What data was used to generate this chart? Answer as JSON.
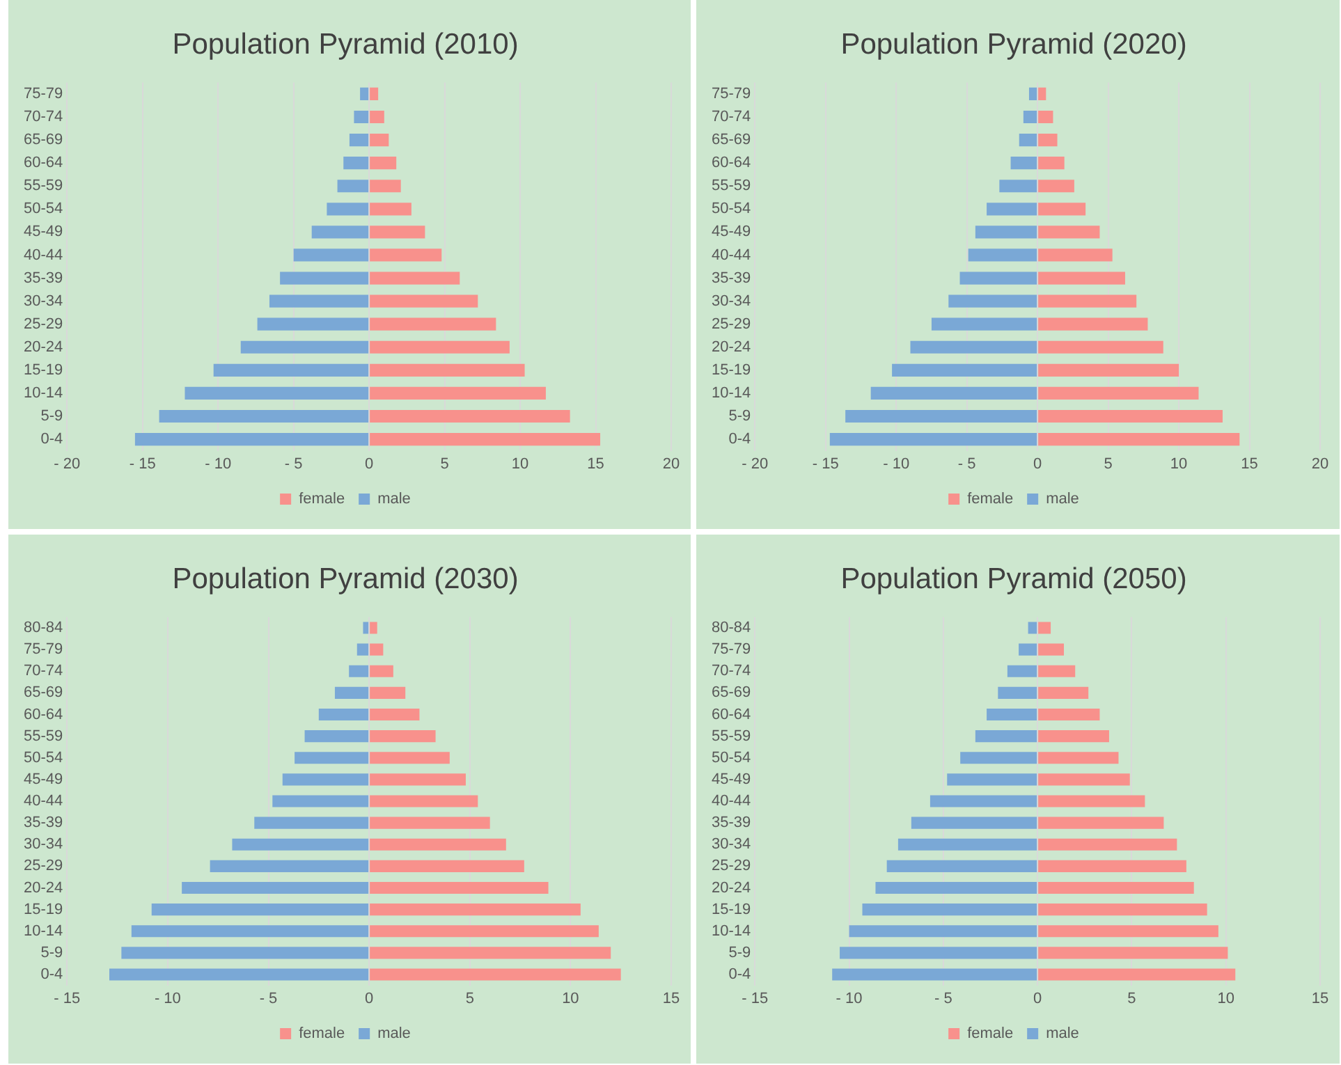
{
  "chart_data": [
    {
      "type": "bar",
      "orientation": "horizontal",
      "stacked": true,
      "title": "Population Pyramid (2010)",
      "categories": [
        "75-79",
        "70-74",
        "65-69",
        "60-64",
        "55-59",
        "50-54",
        "45-49",
        "40-44",
        "35-39",
        "30-34",
        "25-29",
        "20-24",
        "15-19",
        "10-14",
        "5-9",
        "0-4"
      ],
      "series": [
        {
          "name": "female",
          "color": "#f8918c",
          "values": [
            0.6,
            1.0,
            1.3,
            1.8,
            2.1,
            2.8,
            3.7,
            4.8,
            6.0,
            7.2,
            8.4,
            9.3,
            10.3,
            11.7,
            13.3,
            15.3
          ]
        },
        {
          "name": "male",
          "color": "#7aa8d6",
          "values": [
            -0.6,
            -1.0,
            -1.3,
            -1.7,
            -2.1,
            -2.8,
            -3.8,
            -5.0,
            -5.9,
            -6.6,
            -7.4,
            -8.5,
            -10.3,
            -12.2,
            -13.9,
            -15.5
          ]
        }
      ],
      "xlim": [
        -20,
        20
      ],
      "xticks": [
        {
          "value": -20,
          "label": "- 20"
        },
        {
          "value": -15,
          "label": "- 15"
        },
        {
          "value": -10,
          "label": "- 10"
        },
        {
          "value": -5,
          "label": "- 5"
        },
        0,
        5,
        10,
        15,
        20
      ],
      "grid": "x",
      "legend": "bottom"
    },
    {
      "type": "bar",
      "orientation": "horizontal",
      "stacked": true,
      "title": "Population Pyramid (2020)",
      "categories": [
        "75-79",
        "70-74",
        "65-69",
        "60-64",
        "55-59",
        "50-54",
        "45-49",
        "40-44",
        "35-39",
        "30-34",
        "25-29",
        "20-24",
        "15-19",
        "10-14",
        "5-9",
        "0-4"
      ],
      "series": [
        {
          "name": "female",
          "color": "#f8918c",
          "values": [
            0.6,
            1.1,
            1.4,
            1.9,
            2.6,
            3.4,
            4.4,
            5.3,
            6.2,
            7.0,
            7.8,
            8.9,
            10.0,
            11.4,
            13.1,
            14.3
          ]
        },
        {
          "name": "male",
          "color": "#7aa8d6",
          "values": [
            -0.6,
            -1.0,
            -1.3,
            -1.9,
            -2.7,
            -3.6,
            -4.4,
            -4.9,
            -5.5,
            -6.3,
            -7.5,
            -9.0,
            -10.3,
            -11.8,
            -13.6,
            -14.7
          ]
        }
      ],
      "xlim": [
        -20,
        20
      ],
      "xticks": [
        {
          "value": -20,
          "label": "- 20"
        },
        {
          "value": -15,
          "label": "- 15"
        },
        {
          "value": -10,
          "label": "- 10"
        },
        {
          "value": -5,
          "label": "- 5"
        },
        0,
        5,
        10,
        15,
        20
      ],
      "grid": "x",
      "legend": "bottom"
    },
    {
      "type": "bar",
      "orientation": "horizontal",
      "stacked": true,
      "title": "Population Pyramid (2030)",
      "categories": [
        "80-84",
        "75-79",
        "70-74",
        "65-69",
        "60-64",
        "55-59",
        "50-54",
        "45-49",
        "40-44",
        "35-39",
        "30-34",
        "25-29",
        "20-24",
        "15-19",
        "10-14",
        "5-9",
        "0-4"
      ],
      "series": [
        {
          "name": "female",
          "color": "#f8918c",
          "values": [
            0.4,
            0.7,
            1.2,
            1.8,
            2.5,
            3.3,
            4.0,
            4.8,
            5.4,
            6.0,
            6.8,
            7.7,
            8.9,
            10.5,
            11.4,
            12.0,
            12.5
          ]
        },
        {
          "name": "male",
          "color": "#7aa8d6",
          "values": [
            -0.3,
            -0.6,
            -1.0,
            -1.7,
            -2.5,
            -3.2,
            -3.7,
            -4.3,
            -4.8,
            -5.7,
            -6.8,
            -7.9,
            -9.3,
            -10.8,
            -11.8,
            -12.3,
            -12.9
          ]
        }
      ],
      "xlim": [
        -15,
        15
      ],
      "xticks": [
        {
          "value": -15,
          "label": "- 15"
        },
        {
          "value": -10,
          "label": "- 10"
        },
        {
          "value": -5,
          "label": "- 5"
        },
        0,
        5,
        10,
        15
      ],
      "grid": "x",
      "legend": "bottom"
    },
    {
      "type": "bar",
      "orientation": "horizontal",
      "stacked": true,
      "title": "Population Pyramid (2050)",
      "categories": [
        "80-84",
        "75-79",
        "70-74",
        "65-69",
        "60-64",
        "55-59",
        "50-54",
        "45-49",
        "40-44",
        "35-39",
        "30-34",
        "25-29",
        "20-24",
        "15-19",
        "10-14",
        "5-9",
        "0-4"
      ],
      "series": [
        {
          "name": "female",
          "color": "#f8918c",
          "values": [
            0.7,
            1.4,
            2.0,
            2.7,
            3.3,
            3.8,
            4.3,
            4.9,
            5.7,
            6.7,
            7.4,
            7.9,
            8.3,
            9.0,
            9.6,
            10.1,
            10.5
          ]
        },
        {
          "name": "male",
          "color": "#7aa8d6",
          "values": [
            -0.5,
            -1.0,
            -1.6,
            -2.1,
            -2.7,
            -3.3,
            -4.1,
            -4.8,
            -5.7,
            -6.7,
            -7.4,
            -8.0,
            -8.6,
            -9.3,
            -10.0,
            -10.5,
            -10.9
          ]
        }
      ],
      "xlim": [
        -15,
        15
      ],
      "xticks": [
        {
          "value": -15,
          "label": "- 15"
        },
        {
          "value": -10,
          "label": "- 10"
        },
        {
          "value": -5,
          "label": "- 5"
        },
        0,
        5,
        10,
        15
      ],
      "grid": "x",
      "legend": "bottom"
    }
  ]
}
